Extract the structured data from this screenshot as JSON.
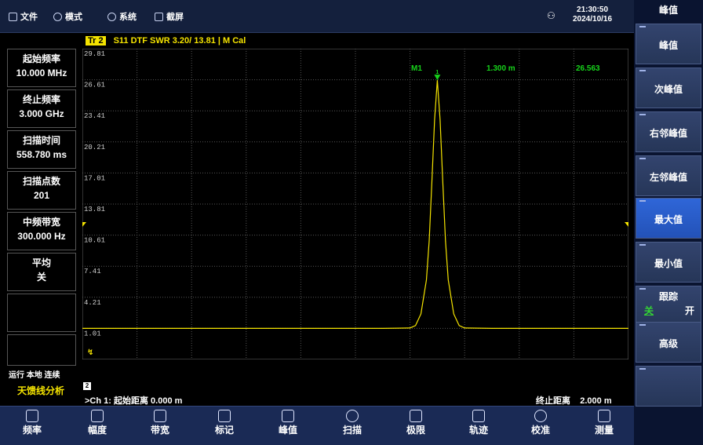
{
  "topbar": {
    "menu": [
      "文件",
      "模式",
      "系统",
      "截屏"
    ],
    "time": "21:30:50",
    "date": "2024/10/16"
  },
  "left_params": [
    {
      "label": "起始频率",
      "value": "10.000 MHz"
    },
    {
      "label": "终止频率",
      "value": "3.000 GHz"
    },
    {
      "label": "扫描时间",
      "value": "558.780 ms"
    },
    {
      "label": "扫描点数",
      "value": "201"
    },
    {
      "label": "中频带宽",
      "value": "300.000 Hz"
    },
    {
      "label": "平均",
      "value": "关"
    }
  ],
  "status": {
    "run": "运行 本地 连续",
    "mode": "天馈线分析"
  },
  "trace": {
    "tag": "Tr 2",
    "header": "S11 DTF SWR 3.20/ 13.81 | M Cal"
  },
  "chart_data": {
    "type": "line",
    "title": "S11 DTF SWR 3.20/ 13.81 | M Cal",
    "xlabel": "",
    "ylabel": "",
    "xlim": [
      0.0,
      2.0
    ],
    "ylim": [
      -2.19,
      29.81
    ],
    "yticks": [
      "29.81",
      "26.61",
      "23.41",
      "20.21",
      "17.01",
      "13.81",
      "10.61",
      "7.41",
      "4.21",
      "1.01"
    ],
    "series": [
      {
        "color": "#f5e400",
        "x": [
          0.0,
          1.1,
          1.2,
          1.22,
          1.24,
          1.26,
          1.27,
          1.28,
          1.29,
          1.3,
          1.31,
          1.32,
          1.33,
          1.34,
          1.36,
          1.38,
          1.4,
          1.5,
          2.0
        ],
        "y": [
          1.01,
          1.01,
          1.05,
          1.3,
          2.5,
          6.0,
          10.0,
          16.0,
          22.5,
          26.563,
          22.5,
          16.0,
          10.0,
          6.0,
          2.5,
          1.3,
          1.05,
          1.01,
          1.01
        ]
      }
    ],
    "markers": [
      {
        "name": "M1",
        "x": 1.3,
        "y": 26.563,
        "x_text": "1.300 m",
        "y_text": "26.563",
        "index": "1"
      }
    ]
  },
  "channel": {
    "number": "2",
    "start_line": ">Ch 1: 起始距离  0.000 m",
    "stop_label": "终止距离",
    "stop_value": "2.000 m"
  },
  "bottom_tabs": [
    "频率",
    "幅度",
    "带宽",
    "标记",
    "峰值",
    "扫描",
    "极限",
    "轨迹",
    "校准",
    "测量"
  ],
  "softkeys": {
    "title": "峰值",
    "keys": [
      "峰值",
      "次峰值",
      "右邻峰值",
      "左邻峰值",
      "最大值",
      "最小值",
      "跟踪",
      "高级",
      ""
    ],
    "tracking_off": "关",
    "tracking_on": "开"
  }
}
